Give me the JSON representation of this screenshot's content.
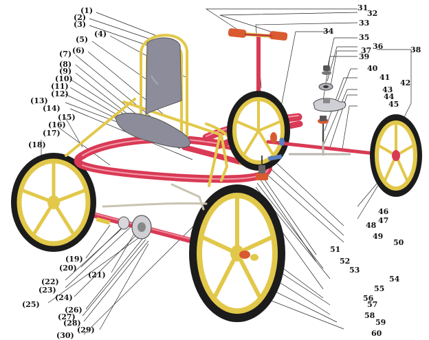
{
  "colors": {
    "frame_red": "#d93a55",
    "seat_gray": "#8c8c9a",
    "rim_yellow": "#e2c84a",
    "tire_black": "#1c1c1c",
    "rod_gray": "#b9b6ad",
    "leader_line": "#222222"
  },
  "labels": {
    "l1": "(1)",
    "l2": "(2)",
    "l3": "(3)",
    "l4": "(4)",
    "l5": "(5)",
    "l6": "(6)",
    "l7": "(7)",
    "l8": "(8)",
    "l9": "(9)",
    "l10": "(10)",
    "l11": "(11)",
    "l12": "(12)",
    "l13": "(13)",
    "l14": "(14)",
    "l15": "(15)",
    "l16": "(16)",
    "l17": "(17)",
    "l18": "(18)",
    "l19": "(19)",
    "l20": "(20)",
    "l21": "(21)",
    "l22": "(22)",
    "l23": "(23)",
    "l24": "(24)",
    "l25": "(25)",
    "l26": "(26)",
    "l27": "(27)",
    "l28": "(28)",
    "l29": "(29)",
    "l30": "(30)",
    "l31": "31",
    "l32": "32",
    "l33": "33",
    "l34": "34",
    "l35": "35",
    "l36": "36",
    "l37": "37",
    "l38": "38",
    "l39": "39",
    "l40": "40",
    "l41": "41",
    "l42": "42",
    "l43": "43",
    "l44": "44",
    "l45": "45",
    "l46": "46",
    "l47": "47",
    "l48": "48",
    "l49": "49",
    "l50": "50",
    "l51": "51",
    "l52": "52",
    "l53": "53",
    "l54": "54",
    "l55": "55",
    "l56": "56",
    "l57": "57",
    "l58": "58",
    "l59": "59",
    "l60": "60"
  }
}
